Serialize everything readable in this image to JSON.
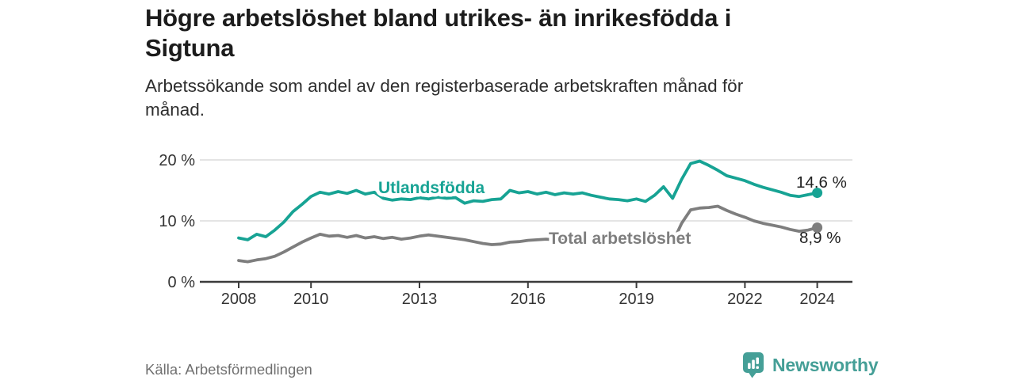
{
  "header": {
    "title": "Högre arbetslöshet bland utrikes- än inrikesfödda i\nSigtuna",
    "subtitle": "Arbetssökande som andel av den registerbaserade arbetskraften månad för\nmånad."
  },
  "footer": {
    "source": "Källa: Arbetsförmedlingen",
    "brand_name": "Newsworthy",
    "brand_icon": "bar-chart-speech-bubble",
    "brand_color": "#459f97"
  },
  "chart_data": {
    "type": "line",
    "title": "Högre arbetslöshet bland utrikes- än inrikesfödda i Sigtuna",
    "ylabel": "",
    "xlabel": "",
    "grid": "horizontal",
    "legend_position": "inline-labels",
    "x_ticks": {
      "values": [
        2008,
        2010,
        2013,
        2016,
        2019,
        2022,
        2024
      ],
      "labels": [
        "2008",
        "2010",
        "2013",
        "2016",
        "2019",
        "2022",
        "2024"
      ]
    },
    "y_ticks": {
      "values": [
        0,
        10,
        20
      ],
      "labels": [
        "0 %",
        "10 %",
        "20 %"
      ]
    },
    "x_range": [
      2007.9,
      2025.0
    ],
    "y_range": [
      0,
      21
    ],
    "x": [
      2008,
      2008.25,
      2008.5,
      2008.75,
      2009,
      2009.25,
      2009.5,
      2009.75,
      2010,
      2010.25,
      2010.5,
      2010.75,
      2011,
      2011.25,
      2011.5,
      2011.75,
      2012,
      2012.25,
      2012.5,
      2012.75,
      2013,
      2013.25,
      2013.5,
      2013.75,
      2014,
      2014.25,
      2014.5,
      2014.75,
      2015,
      2015.25,
      2015.5,
      2015.75,
      2016,
      2016.25,
      2016.5,
      2016.75,
      2017,
      2017.25,
      2017.5,
      2017.75,
      2018,
      2018.25,
      2018.5,
      2018.75,
      2019,
      2019.25,
      2019.5,
      2019.75,
      2020,
      2020.25,
      2020.5,
      2020.75,
      2021,
      2021.25,
      2021.5,
      2021.75,
      2022,
      2022.25,
      2022.5,
      2022.75,
      2023,
      2023.25,
      2023.5,
      2023.75,
      2024
    ],
    "series": [
      {
        "name": "Utlandsfödda",
        "color": "#17a394",
        "end_label": "14,6 %",
        "end_value": 14.6,
        "values": [
          7.2,
          6.9,
          7.8,
          7.4,
          8.5,
          9.8,
          11.5,
          12.7,
          14.0,
          14.7,
          14.4,
          14.8,
          14.5,
          15.0,
          14.4,
          14.7,
          13.7,
          13.4,
          13.6,
          13.5,
          13.8,
          13.6,
          13.9,
          13.7,
          13.8,
          12.9,
          13.3,
          13.2,
          13.5,
          13.6,
          15.0,
          14.6,
          14.8,
          14.4,
          14.7,
          14.3,
          14.6,
          14.4,
          14.6,
          14.2,
          13.9,
          13.6,
          13.5,
          13.3,
          13.6,
          13.2,
          14.2,
          15.6,
          13.7,
          16.8,
          19.4,
          19.8,
          19.1,
          18.3,
          17.4,
          17.0,
          16.6,
          16.0,
          15.5,
          15.1,
          14.7,
          14.2,
          14.0,
          14.3,
          14.6
        ]
      },
      {
        "name": "Total arbetslöshet",
        "color": "#7e7e7e",
        "end_label": "8,9 %",
        "end_value": 8.9,
        "values": [
          3.5,
          3.3,
          3.6,
          3.8,
          4.2,
          4.9,
          5.7,
          6.5,
          7.2,
          7.8,
          7.5,
          7.6,
          7.3,
          7.6,
          7.2,
          7.4,
          7.1,
          7.3,
          7.0,
          7.2,
          7.5,
          7.7,
          7.5,
          7.3,
          7.1,
          6.9,
          6.6,
          6.3,
          6.1,
          6.2,
          6.5,
          6.6,
          6.8,
          6.9,
          7.0,
          6.9,
          6.8,
          6.7,
          6.6,
          6.5,
          6.4,
          6.3,
          6.2,
          6.1,
          6.0,
          6.1,
          6.3,
          6.5,
          6.4,
          9.6,
          11.8,
          12.1,
          12.2,
          12.4,
          11.7,
          11.1,
          10.6,
          10.0,
          9.6,
          9.3,
          9.0,
          8.6,
          8.3,
          8.5,
          8.9
        ]
      }
    ]
  }
}
